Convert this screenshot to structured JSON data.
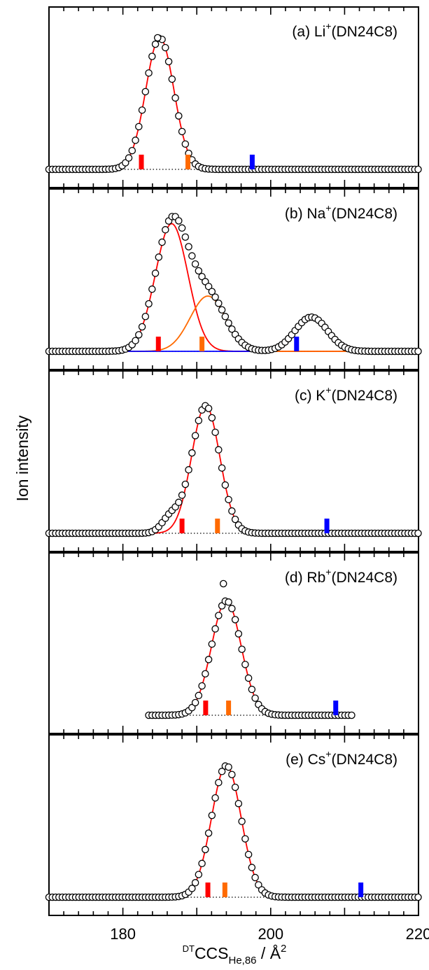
{
  "figure": {
    "ylabel": "Ion intensity",
    "xlabel_parts": {
      "pre": "DT",
      "main": "CCS",
      "sub": "He,86",
      "tail": " / Å",
      "sup": "2"
    },
    "xlim": [
      170,
      220
    ],
    "xticks": [
      "180",
      "200",
      "220"
    ],
    "colors": {
      "fit_main": "#ff0000",
      "fit_second": "#ff6a00",
      "fit_third": "#0000ff",
      "calc_a": "#ff0000",
      "calc_b": "#ff6a00",
      "calc_c": "#0000ff",
      "markers": "#000000",
      "baseline": "#000000"
    }
  },
  "chart_data": [
    {
      "type": "scatter",
      "panel": "a",
      "label": {
        "pre": "(a) Li",
        "sup": "+",
        "post": "(DN24C8)"
      },
      "xlim": [
        170,
        220
      ],
      "ylim": [
        0,
        1.05
      ],
      "x_range": [
        170,
        220
      ],
      "fits": [
        {
          "center": 185.0,
          "height": 1.0,
          "sigma": 1.9,
          "color": "#ff0000"
        }
      ],
      "points_from_fit": true,
      "extra_points": [
        {
          "x": 184.7,
          "y": 1.0
        }
      ],
      "calc_sticks": [
        {
          "x": 182.5,
          "color": "#ff0000"
        },
        {
          "x": 188.8,
          "color": "#ff6a00"
        },
        {
          "x": 197.5,
          "color": "#0000ff"
        }
      ]
    },
    {
      "type": "scatter",
      "panel": "b",
      "label": {
        "pre": "(b) Na",
        "sup": "+",
        "post": "(DN24C8)"
      },
      "xlim": [
        170,
        220
      ],
      "ylim": [
        0,
        1.05
      ],
      "x_range": [
        170,
        220
      ],
      "fits": [
        {
          "center": 186.6,
          "height": 0.97,
          "sigma": 2.2,
          "color": "#ff0000"
        },
        {
          "center": 191.5,
          "height": 0.42,
          "sigma": 2.4,
          "color": "#ff6a00"
        },
        {
          "center": 205.5,
          "height": 0.26,
          "sigma": 2.2,
          "color": "#0000ff"
        }
      ],
      "points_from_fit": true,
      "calc_sticks": [
        {
          "x": 184.8,
          "color": "#ff0000"
        },
        {
          "x": 190.7,
          "color": "#ff6a00"
        },
        {
          "x": 203.5,
          "color": "#0000ff"
        }
      ]
    },
    {
      "type": "scatter",
      "panel": "c",
      "label": {
        "pre": "(c) K",
        "sup": "+",
        "post": "(DN24C8)"
      },
      "xlim": [
        170,
        220
      ],
      "ylim": [
        0,
        1.05
      ],
      "x_range": [
        170,
        220
      ],
      "fits": [
        {
          "center": 191.2,
          "height": 0.97,
          "sigma": 1.9,
          "color": "#ff0000"
        }
      ],
      "points_from_fit": true,
      "shoulder": {
        "center": 186.5,
        "height": 0.12,
        "sigma": 1.2
      },
      "calc_sticks": [
        {
          "x": 188.0,
          "color": "#ff0000"
        },
        {
          "x": 192.8,
          "color": "#ff6a00"
        },
        {
          "x": 207.6,
          "color": "#0000ff"
        }
      ]
    },
    {
      "type": "scatter",
      "panel": "d",
      "label": {
        "pre": "(d) Rb",
        "sup": "+",
        "post": "(DN24C8)"
      },
      "xlim": [
        170,
        220
      ],
      "ylim": [
        0,
        1.05
      ],
      "x_range": [
        183.5,
        211
      ],
      "fits": [
        {
          "center": 194.0,
          "height": 0.87,
          "sigma": 2.0,
          "color": "#ff0000"
        }
      ],
      "points_from_fit": true,
      "extra_points": [
        {
          "x": 193.6,
          "y": 1.0
        }
      ],
      "calc_sticks": [
        {
          "x": 191.2,
          "color": "#ff0000"
        },
        {
          "x": 194.3,
          "color": "#ff6a00"
        },
        {
          "x": 208.8,
          "color": "#0000ff"
        }
      ]
    },
    {
      "type": "scatter",
      "panel": "e",
      "label": {
        "pre": "(e) Cs",
        "sup": "+",
        "post": "(DN24C8)"
      },
      "xlim": [
        170,
        220
      ],
      "ylim": [
        0,
        1.05
      ],
      "x_range": [
        170,
        220
      ],
      "fits": [
        {
          "center": 194.0,
          "height": 1.0,
          "sigma": 2.0,
          "color": "#ff0000"
        }
      ],
      "points_from_fit": true,
      "calc_sticks": [
        {
          "x": 191.5,
          "color": "#ff0000"
        },
        {
          "x": 193.8,
          "color": "#ff6a00"
        },
        {
          "x": 212.2,
          "color": "#0000ff"
        }
      ]
    }
  ]
}
